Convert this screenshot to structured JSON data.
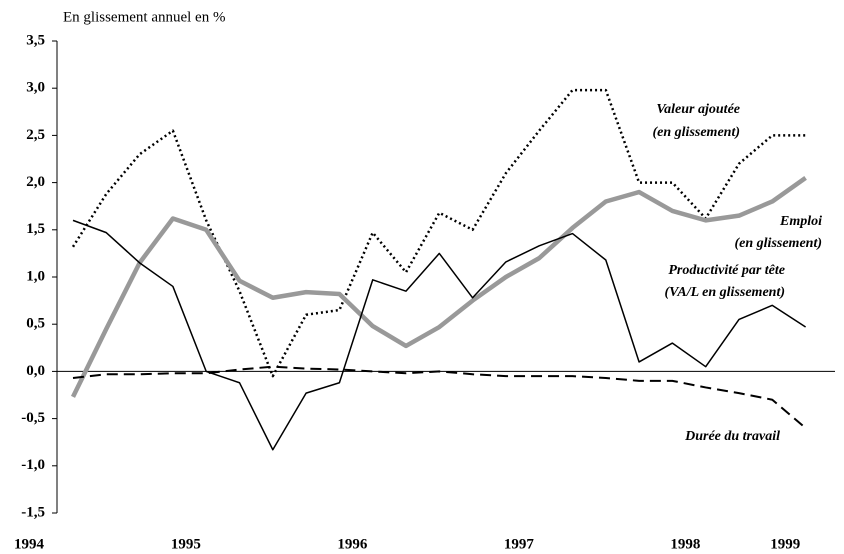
{
  "chart_data": {
    "type": "line",
    "title": "En glissement annuel en %",
    "categories": [
      "1994",
      null,
      null,
      "1995",
      null,
      null,
      null,
      null,
      "1996",
      null,
      null,
      null,
      null,
      "1997",
      null,
      null,
      null,
      null,
      "1998",
      null,
      null,
      "1999",
      null
    ],
    "ylim": [
      -1.5,
      3.5
    ],
    "yticks": [
      {
        "value": -1.5,
        "label": "-1,5"
      },
      {
        "value": -1.0,
        "label": "-1,0"
      },
      {
        "value": -0.5,
        "label": "-0,5"
      },
      {
        "value": 0.0,
        "label": "0,0"
      },
      {
        "value": 0.5,
        "label": "0,5"
      },
      {
        "value": 1.0,
        "label": "1,0"
      },
      {
        "value": 1.5,
        "label": "1,5"
      },
      {
        "value": 2.0,
        "label": "2,0"
      },
      {
        "value": 2.5,
        "label": "2,5"
      },
      {
        "value": 3.0,
        "label": "3,0"
      },
      {
        "value": 3.5,
        "label": "3,5"
      }
    ],
    "grid": false,
    "series": [
      {
        "name": "Valeur ajoutée",
        "label": [
          "Valeur ajoutée",
          "(en glissement)"
        ],
        "color": "#000000",
        "style": "dotted",
        "values": [
          1.32,
          1.88,
          2.3,
          2.55,
          1.6,
          0.85,
          -0.05,
          0.6,
          0.65,
          1.47,
          1.05,
          1.68,
          1.5,
          2.1,
          2.55,
          2.98,
          2.98,
          2.0,
          2.0,
          1.62,
          2.2,
          2.5,
          2.5
        ]
      },
      {
        "name": "Emploi",
        "label": [
          "Emploi",
          "(en glissement)"
        ],
        "color": "#999999",
        "style": "thick",
        "values": [
          -0.27,
          0.45,
          1.15,
          1.62,
          1.5,
          0.96,
          0.78,
          0.84,
          0.82,
          0.48,
          0.27,
          0.47,
          0.75,
          1.0,
          1.2,
          1.52,
          1.8,
          1.9,
          1.7,
          1.6,
          1.65,
          1.8,
          2.05
        ]
      },
      {
        "name": "Productivité par tête",
        "label": [
          "Productivité par tête",
          "(VA/L en glissement)"
        ],
        "color": "#000000",
        "style": "solid",
        "values": [
          1.6,
          1.47,
          1.15,
          0.9,
          0.0,
          -0.12,
          -0.83,
          -0.23,
          -0.12,
          0.97,
          0.85,
          1.25,
          0.78,
          1.16,
          1.33,
          1.46,
          1.18,
          0.1,
          0.3,
          0.05,
          0.55,
          0.7,
          0.47
        ]
      },
      {
        "name": "Durée du travail",
        "label": [
          "Durée du travail"
        ],
        "color": "#000000",
        "style": "dashed",
        "values": [
          -0.07,
          -0.03,
          -0.03,
          -0.02,
          -0.02,
          0.02,
          0.05,
          0.03,
          0.02,
          0.0,
          -0.02,
          0.0,
          -0.03,
          -0.05,
          -0.05,
          -0.05,
          -0.07,
          -0.1,
          -0.1,
          -0.17,
          -0.23,
          -0.3,
          -0.6
        ]
      }
    ]
  }
}
